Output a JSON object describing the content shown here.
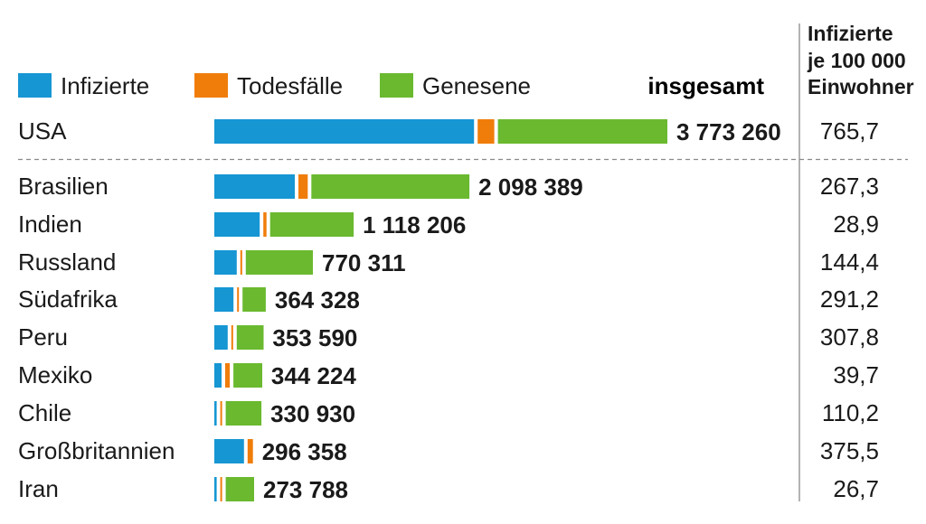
{
  "chart_data": {
    "type": "bar",
    "stacked": true,
    "total_label": "insgesamt",
    "rate_header": [
      "Infizierte",
      "je 100 000",
      "Einwohner"
    ],
    "series": [
      {
        "name": "Infizierte",
        "color": "#1696d3"
      },
      {
        "name": "Todesfälle",
        "color": "#f07d0a"
      },
      {
        "name": "Genesene",
        "color": "#6ab92f"
      }
    ],
    "rows": [
      {
        "country": "USA",
        "infected": 2198000,
        "deaths": 141000,
        "recovered": 1434000,
        "total_label": "3 773 260",
        "rate": "765,7"
      },
      {
        "country": "Brasilien",
        "infected": 681000,
        "deaths": 79000,
        "recovered": 1338000,
        "total_label": "2 098 389",
        "rate": "267,3"
      },
      {
        "country": "Indien",
        "infected": 384000,
        "deaths": 27000,
        "recovered": 707000,
        "total_label": "1 118 206",
        "rate": "28,9"
      },
      {
        "country": "Russland",
        "infected": 190000,
        "deaths": 12000,
        "recovered": 568000,
        "total_label": "770 311",
        "rate": "144,4"
      },
      {
        "country": "Südafrika",
        "infected": 162000,
        "deaths": 5000,
        "recovered": 197000,
        "total_label": "364 328",
        "rate": "291,2"
      },
      {
        "country": "Peru",
        "infected": 113000,
        "deaths": 13000,
        "recovered": 227000,
        "total_label": "353 590",
        "rate": "307,8"
      },
      {
        "country": "Mexiko",
        "infected": 61000,
        "deaths": 39000,
        "recovered": 244000,
        "total_label": "344 224",
        "rate": "39,7"
      },
      {
        "country": "Chile",
        "infected": 20000,
        "deaths": 9000,
        "recovered": 302000,
        "total_label": "330 930",
        "rate": "110,2"
      },
      {
        "country": "Großbritannien",
        "infected": 251000,
        "deaths": 45000,
        "recovered": 0,
        "total_label": "296 358",
        "rate": "375,5"
      },
      {
        "country": "Iran",
        "infected": 20000,
        "deaths": 14000,
        "recovered": 240000,
        "total_label": "273 788",
        "rate": "26,7"
      }
    ]
  }
}
